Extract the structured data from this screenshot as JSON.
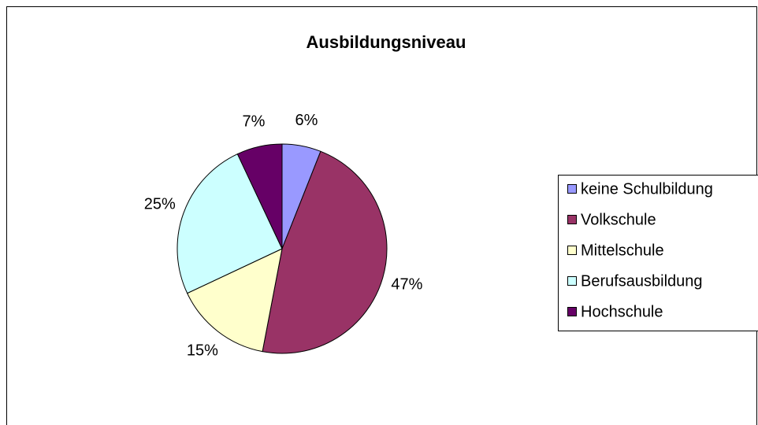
{
  "chart_data": {
    "type": "pie",
    "title": "Ausbildungsniveau",
    "categories": [
      "keine Schulbildung",
      "Volkschule",
      "Mittelschule",
      "Berufsausbildung",
      "Hochschule"
    ],
    "values": [
      6,
      47,
      15,
      25,
      7
    ],
    "value_labels": [
      "6%",
      "47%",
      "15%",
      "25%",
      "7%"
    ],
    "colors": [
      "#9999ff",
      "#993366",
      "#ffffcc",
      "#ccffff",
      "#660066"
    ],
    "legend": "right"
  }
}
